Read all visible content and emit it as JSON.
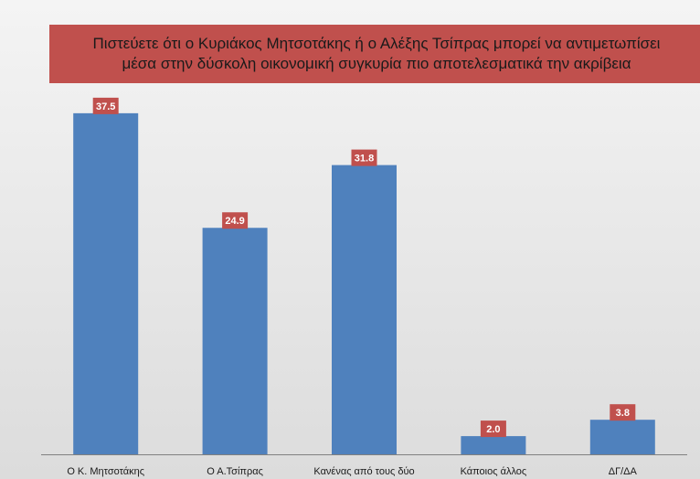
{
  "chart_data": {
    "type": "bar",
    "title_lines": [
      "Πιστεύετε ότι ο Κυριάκος Μητσοτάκης ή ο Αλέξης Τσίπρας μπορεί να αντιμετωπίσει",
      "μέσα στην δύσκολη οικονομική συγκυρία πιο αποτελεσματικά την ακρίβεια"
    ],
    "categories": [
      "Ο Κ. Μητσοτάκης",
      "Ο Α.Τσίπρας",
      "Κανένας από τους δύο",
      "Κάποιος άλλος",
      "ΔΓ/ΔΑ"
    ],
    "values": [
      37.5,
      24.9,
      31.8,
      2.0,
      3.8
    ],
    "value_labels": [
      "37.5",
      "24.9",
      "31.8",
      "2.0",
      "3.8"
    ],
    "xlabel": "",
    "ylabel": "",
    "ylim": [
      0,
      40
    ],
    "grid": false,
    "legend": "none",
    "colors": {
      "bar": "#4f81bd",
      "label_bg": "#c0504d",
      "title_bg": "#c0504d"
    }
  }
}
